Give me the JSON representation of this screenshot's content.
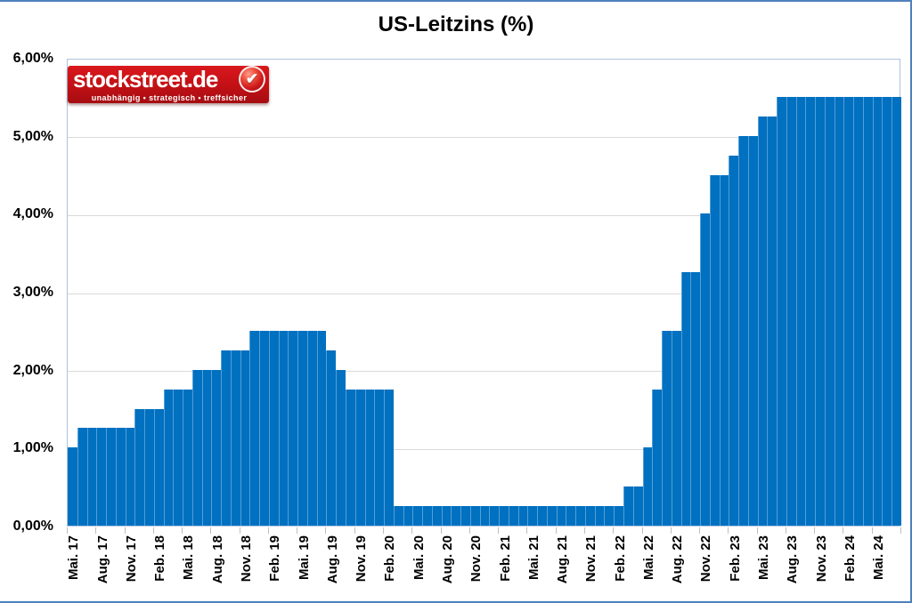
{
  "title": "US-Leitzins (%)",
  "logo": {
    "brand": "stockstreet.de",
    "tagline": "unabhängig • strategisch • treffsicher",
    "badge_icon": "check",
    "bg_color": "#c11015",
    "text_color": "#ffffff"
  },
  "chart_data": {
    "type": "bar",
    "title": "US-Leitzins (%)",
    "xlabel": "",
    "ylabel": "",
    "ylim": [
      0,
      6
    ],
    "grid": true,
    "legend": "none",
    "bar_color": "#0070c0",
    "gridline_color": "#d9d9d9",
    "y_tick_labels": [
      "0,00%",
      "1,00%",
      "2,00%",
      "3,00%",
      "4,00%",
      "5,00%",
      "6,00%"
    ],
    "x_tick_labels": [
      "Mai. 17",
      "Aug. 17",
      "Nov. 17",
      "Feb. 18",
      "Mai. 18",
      "Aug. 18",
      "Nov. 18",
      "Feb. 19",
      "Mai. 19",
      "Aug. 19",
      "Nov. 19",
      "Feb. 20",
      "Mai. 20",
      "Aug. 20",
      "Nov. 20",
      "Feb. 21",
      "Mai. 21",
      "Aug. 21",
      "Nov. 21",
      "Feb. 22",
      "Mai. 22",
      "Aug. 22",
      "Nov. 22",
      "Feb. 23",
      "Mai. 23",
      "Aug. 23",
      "Nov. 23",
      "Feb. 24",
      "Mai. 24"
    ],
    "x_label_interval_months": 3,
    "start_month_label": "Mai. 17",
    "months_total": 87,
    "values": [
      1.0,
      1.25,
      1.25,
      1.25,
      1.25,
      1.25,
      1.25,
      1.5,
      1.5,
      1.5,
      1.75,
      1.75,
      1.75,
      2.0,
      2.0,
      2.0,
      2.25,
      2.25,
      2.25,
      2.5,
      2.5,
      2.5,
      2.5,
      2.5,
      2.5,
      2.5,
      2.5,
      2.25,
      2.0,
      1.75,
      1.75,
      1.75,
      1.75,
      1.75,
      0.25,
      0.25,
      0.25,
      0.25,
      0.25,
      0.25,
      0.25,
      0.25,
      0.25,
      0.25,
      0.25,
      0.25,
      0.25,
      0.25,
      0.25,
      0.25,
      0.25,
      0.25,
      0.25,
      0.25,
      0.25,
      0.25,
      0.25,
      0.25,
      0.5,
      0.5,
      1.0,
      1.75,
      2.5,
      2.5,
      3.25,
      3.25,
      4.0,
      4.5,
      4.5,
      4.75,
      5.0,
      5.0,
      5.25,
      5.25,
      5.5,
      5.5,
      5.5,
      5.5,
      5.5,
      5.5,
      5.5,
      5.5,
      5.5,
      5.5,
      5.5,
      5.5,
      5.5
    ]
  }
}
